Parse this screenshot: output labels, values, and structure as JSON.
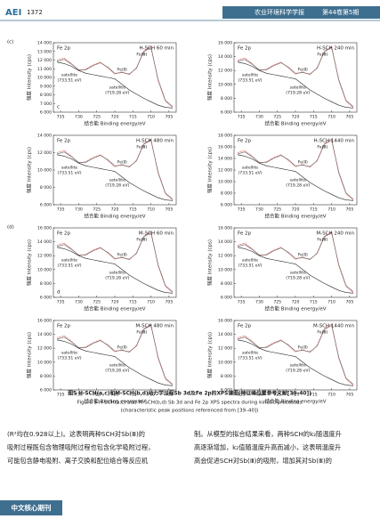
{
  "header": {
    "logo": "AEI",
    "page": "1372",
    "journal": "农业环境科学学报",
    "issue": "第44卷第5期"
  },
  "figure": {
    "x": [
      736,
      734,
      732,
      730,
      728,
      726,
      724,
      722,
      720,
      718,
      716,
      714,
      712,
      710,
      708,
      706,
      704
    ],
    "xlim": [
      737,
      703
    ],
    "xticks": [
      735,
      730,
      725,
      720,
      715,
      710,
      705
    ],
    "x_label": "结合能 Binding energy/eV",
    "y_label": "强度 Intensity (cps)",
    "fe_label": "Fe 2p",
    "fe2": "Fe(Ⅱ)",
    "fe3": "Fe(Ⅲ)",
    "satellite": "satellite",
    "sat1": "(733.51 eV)",
    "sat2": "(719.28 eV)",
    "group_labels": [
      "(c)",
      "(d)"
    ],
    "inner_labels": [
      "c",
      "d"
    ],
    "panels": [
      {
        "title": "H-SCH 60 min",
        "ylim": [
          6000,
          14000
        ],
        "yticks": [
          {
            "value": 6000,
            "label": "6 000"
          },
          {
            "value": 7000,
            "label": "7 000"
          },
          {
            "value": 8000,
            "label": "8 000"
          },
          {
            "value": 9000,
            "label": "9 000"
          },
          {
            "value": 10000,
            "label": "10 000"
          },
          {
            "value": 11000,
            "label": "11 000"
          },
          {
            "value": 12000,
            "label": "12 000"
          },
          {
            "value": 13000,
            "label": "13 000"
          },
          {
            "value": 14000,
            "label": "14 000"
          }
        ],
        "series": [
          {
            "color": "#d9534f",
            "values": [
              12000,
              12240,
              11600,
              10800,
              10960,
              11440,
              11760,
              11120,
              10400,
              10640,
              10320,
              11120,
              13040,
              13600,
              9600,
              7280,
              6560
            ]
          },
          {
            "color": "#666666",
            "values": [
              11840,
              12080,
              11520,
              10880,
              10880,
              11360,
              11680,
              11200,
              10480,
              10560,
              10400,
              11040,
              12960,
              13440,
              9760,
              7360,
              6640
            ]
          },
          {
            "color": "#222222",
            "values": [
              11760,
              11600,
              11280,
              10800,
              10480,
              10320,
              10160,
              10000,
              9840,
              9200,
              8560,
              8080,
              7600,
              7200,
              6800,
              6560,
              6480
            ]
          }
        ]
      },
      {
        "title": "H-SCH 240 min",
        "ylim": [
          6000,
          16000
        ],
        "yticks": [
          {
            "value": 6000,
            "label": "6 000"
          },
          {
            "value": 8000,
            "label": "8 000"
          },
          {
            "value": 10000,
            "label": "10 000"
          },
          {
            "value": 12000,
            "label": "12 000"
          },
          {
            "value": 14000,
            "label": "14 000"
          },
          {
            "value": 16000,
            "label": "16 000"
          }
        ],
        "series": [
          {
            "color": "#d9534f",
            "values": [
              13500,
              13800,
              13000,
              12000,
              12200,
              12800,
              13200,
              12400,
              11500,
              11800,
              11400,
              12400,
              14800,
              15500,
              10500,
              7600,
              6700
            ]
          },
          {
            "color": "#666666",
            "values": [
              13300,
              13600,
              12900,
              12100,
              12100,
              12700,
              13100,
              12500,
              11600,
              11700,
              11500,
              12300,
              14700,
              15300,
              10700,
              7700,
              6800
            ]
          },
          {
            "color": "#222222",
            "values": [
              13200,
              13000,
              12600,
              12000,
              11600,
              11400,
              11200,
              11000,
              10800,
              10000,
              9200,
              8600,
              8000,
              7500,
              7000,
              6700,
              6600
            ]
          }
        ]
      },
      {
        "title": "H-SCH 480 min",
        "ylim": [
          6000,
          14000
        ],
        "yticks": [
          {
            "value": 6000,
            "label": "6 000"
          },
          {
            "value": 8000,
            "label": "8 000"
          },
          {
            "value": 10000,
            "label": "10 000"
          },
          {
            "value": 12000,
            "label": "12 000"
          },
          {
            "value": 14000,
            "label": "14 000"
          }
        ],
        "series": [
          {
            "color": "#d9534f",
            "values": [
              12000,
              12240,
              11600,
              10800,
              10960,
              11440,
              11760,
              11120,
              10400,
              10640,
              10320,
              11120,
              13040,
              13600,
              9600,
              7280,
              6560
            ]
          },
          {
            "color": "#666666",
            "values": [
              11840,
              12080,
              11520,
              10880,
              10880,
              11360,
              11680,
              11200,
              10480,
              10560,
              10400,
              11040,
              12960,
              13440,
              9760,
              7360,
              6640
            ]
          },
          {
            "color": "#222222",
            "values": [
              11760,
              11600,
              11280,
              10800,
              10480,
              10320,
              10160,
              10000,
              9840,
              9200,
              8560,
              8080,
              7600,
              7200,
              6800,
              6560,
              6480
            ]
          }
        ]
      },
      {
        "title": "H-SCH 1440 min",
        "ylim": [
          6000,
          18000
        ],
        "yticks": [
          {
            "value": 6000,
            "label": "6 000"
          },
          {
            "value": 8000,
            "label": "8 000"
          },
          {
            "value": 10000,
            "label": "10 000"
          },
          {
            "value": 12000,
            "label": "12 000"
          },
          {
            "value": 14000,
            "label": "14 000"
          },
          {
            "value": 16000,
            "label": "16 000"
          },
          {
            "value": 18000,
            "label": "18 000"
          }
        ],
        "series": [
          {
            "color": "#d9534f",
            "values": [
              15000,
              15360,
              14400,
              13200,
              13440,
              14160,
              14640,
              13680,
              12600,
              12960,
              12480,
              13680,
              16560,
              17400,
              11400,
              7920,
              6840
            ]
          },
          {
            "color": "#666666",
            "values": [
              14760,
              15120,
              14280,
              13320,
              13320,
              14040,
              14520,
              13800,
              12720,
              12840,
              12600,
              13560,
              16440,
              17160,
              11640,
              8040,
              6960
            ]
          },
          {
            "color": "#222222",
            "values": [
              14640,
              14400,
              13920,
              13200,
              12720,
              12480,
              12240,
              12000,
              11760,
              10800,
              9840,
              9120,
              8400,
              7800,
              7200,
              6840,
              6720
            ]
          }
        ]
      },
      {
        "title": "M-SCH 60 min",
        "ylim": [
          6000,
          16000
        ],
        "yticks": [
          {
            "value": 6000,
            "label": "6 000"
          },
          {
            "value": 8000,
            "label": "8 000"
          },
          {
            "value": 10000,
            "label": "10 000"
          },
          {
            "value": 12000,
            "label": "12 000"
          },
          {
            "value": 14000,
            "label": "14 000"
          },
          {
            "value": 16000,
            "label": "16 000"
          }
        ],
        "series": [
          {
            "color": "#d9534f",
            "values": [
              13500,
              13800,
              13000,
              12000,
              12200,
              12800,
              13200,
              12400,
              11500,
              11800,
              11400,
              12400,
              14800,
              15500,
              10500,
              7600,
              6700
            ]
          },
          {
            "color": "#666666",
            "values": [
              13300,
              13600,
              12900,
              12100,
              12100,
              12700,
              13100,
              12500,
              11600,
              11700,
              11500,
              12300,
              14700,
              15300,
              10700,
              7700,
              6800
            ]
          },
          {
            "color": "#222222",
            "values": [
              13200,
              13000,
              12600,
              12000,
              11600,
              11400,
              11200,
              11000,
              10800,
              10000,
              9200,
              8600,
              8000,
              7500,
              7000,
              6700,
              6600
            ]
          }
        ]
      },
      {
        "title": "M-SCH 240 min",
        "ylim": [
          6000,
          16000
        ],
        "yticks": [
          {
            "value": 6000,
            "label": "6 000"
          },
          {
            "value": 8000,
            "label": "8 000"
          },
          {
            "value": 10000,
            "label": "10 000"
          },
          {
            "value": 12000,
            "label": "12 000"
          },
          {
            "value": 14000,
            "label": "14 000"
          },
          {
            "value": 16000,
            "label": "16 000"
          }
        ],
        "series": [
          {
            "color": "#d9534f",
            "values": [
              13500,
              13800,
              13000,
              12000,
              12200,
              12800,
              13200,
              12400,
              11500,
              11800,
              11400,
              12400,
              14800,
              15500,
              10500,
              7600,
              6700
            ]
          },
          {
            "color": "#666666",
            "values": [
              13300,
              13600,
              12900,
              12100,
              12100,
              12700,
              13100,
              12500,
              11600,
              11700,
              11500,
              12300,
              14700,
              15300,
              10700,
              7700,
              6800
            ]
          },
          {
            "color": "#222222",
            "values": [
              13200,
              13000,
              12600,
              12000,
              11600,
              11400,
              11200,
              11000,
              10800,
              10000,
              9200,
              8600,
              8000,
              7500,
              7000,
              6700,
              6600
            ]
          }
        ]
      },
      {
        "title": "M-SCH 480 min",
        "ylim": [
          6000,
          16000
        ],
        "yticks": [
          {
            "value": 6000,
            "label": "6 000"
          },
          {
            "value": 8000,
            "label": "8 000"
          },
          {
            "value": 10000,
            "label": "10 000"
          },
          {
            "value": 12000,
            "label": "12 000"
          },
          {
            "value": 14000,
            "label": "14 000"
          },
          {
            "value": 16000,
            "label": "16 000"
          }
        ],
        "series": [
          {
            "color": "#d9534f",
            "values": [
              13500,
              13800,
              13000,
              12000,
              12200,
              12800,
              13200,
              12400,
              11500,
              11800,
              11400,
              12400,
              14800,
              15500,
              10500,
              7600,
              6700
            ]
          },
          {
            "color": "#666666",
            "values": [
              13300,
              13600,
              12900,
              12100,
              12100,
              12700,
              13100,
              12500,
              11600,
              11700,
              11500,
              12300,
              14700,
              15300,
              10700,
              7700,
              6800
            ]
          },
          {
            "color": "#222222",
            "values": [
              13200,
              13000,
              12600,
              12000,
              11600,
              11400,
              11200,
              11000,
              10800,
              10000,
              9200,
              8600,
              8000,
              7500,
              7000,
              6700,
              6600
            ]
          }
        ]
      },
      {
        "title": "M-SCH 1440 min",
        "ylim": [
          6000,
          16000
        ],
        "yticks": [
          {
            "value": 6000,
            "label": "6 000"
          },
          {
            "value": 8000,
            "label": "8 000"
          },
          {
            "value": 10000,
            "label": "10 000"
          },
          {
            "value": 12000,
            "label": "12 000"
          },
          {
            "value": 14000,
            "label": "14 000"
          },
          {
            "value": 16000,
            "label": "16 000"
          }
        ],
        "series": [
          {
            "color": "#d9534f",
            "values": [
              13500,
              13800,
              13000,
              12000,
              12200,
              12800,
              13200,
              12400,
              11500,
              11800,
              11400,
              12400,
              14800,
              15500,
              10500,
              7600,
              6700
            ]
          },
          {
            "color": "#666666",
            "values": [
              13300,
              13600,
              12900,
              12100,
              12100,
              12700,
              13100,
              12500,
              11600,
              11700,
              11500,
              12300,
              14700,
              15300,
              10700,
              7700,
              6800
            ]
          },
          {
            "color": "#222222",
            "values": [
              13200,
              13000,
              12600,
              12000,
              11600,
              11400,
              11200,
              11000,
              10800,
              10000,
              9200,
              8600,
              8000,
              7500,
              7000,
              6700,
              6600
            ]
          }
        ]
      }
    ],
    "caption_cn": "图5 H-SCH(a,c)和M-SCH(b,d)动力学过程Sb 3d及Fe 2p的XPS谱图(特征峰位置参考文献[39–40])",
    "caption_en": "Figure 5 H-SCH(a,c) and M-SCH(b,d) Sb 3d and Fe 2p XPS spectra during kinetic processes",
    "caption_en2": "(characteristic peak positions referenced from [39–40])"
  },
  "body": {
    "left": [
      "(R²均在0.928以上)。这表明两种SCH对Sb(Ⅲ)的",
      "吸附过程既包含物理吸附过程也包含化学吸附过程，",
      "可能包含静电吸附、离子交换和配位络合等反应机"
    ],
    "right": [
      "制。从模型的拟合结果来看，两种SCH的k₂随温度升",
      "高逐渐增加，k₂值随温度升高而减小，这表明温度升",
      "高会促进SCH对Sb(Ⅲ)的吸附，增加其对Sb(Ⅲ)的"
    ]
  },
  "footer": {
    "badge": "中文核心期刊"
  }
}
